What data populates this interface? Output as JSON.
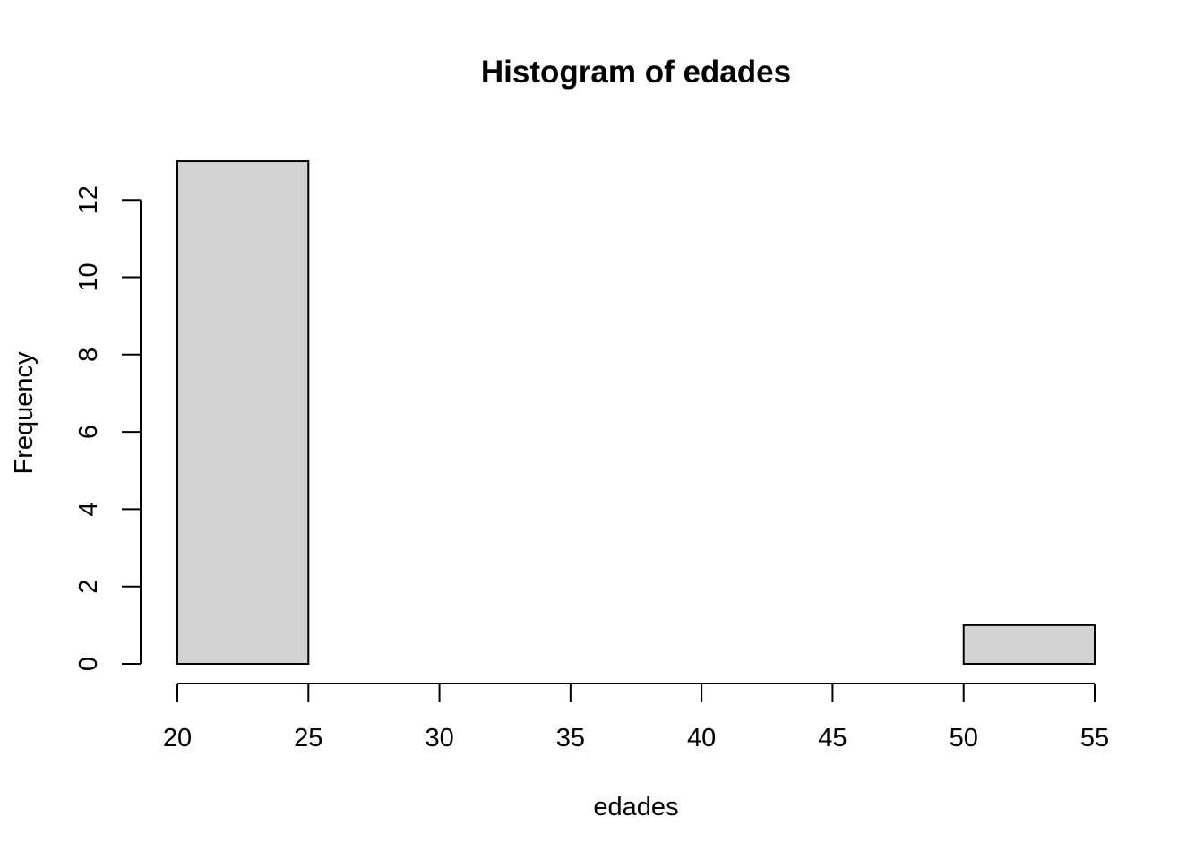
{
  "chart_data": {
    "type": "bar",
    "title": "Histogram of edades",
    "xlabel": "edades",
    "ylabel": "Frequency",
    "bins": [
      {
        "start": 20,
        "end": 25,
        "count": 13
      },
      {
        "start": 25,
        "end": 30,
        "count": 0
      },
      {
        "start": 30,
        "end": 35,
        "count": 0
      },
      {
        "start": 35,
        "end": 40,
        "count": 0
      },
      {
        "start": 40,
        "end": 45,
        "count": 0
      },
      {
        "start": 45,
        "end": 50,
        "count": 0
      },
      {
        "start": 50,
        "end": 55,
        "count": 1
      }
    ],
    "xticks": [
      20,
      25,
      30,
      35,
      40,
      45,
      50,
      55
    ],
    "yticks": [
      0,
      2,
      4,
      6,
      8,
      10,
      12
    ],
    "xlim": [
      20,
      55
    ],
    "ylim": [
      0,
      13
    ],
    "bar_fill": "#d3d3d3",
    "grid": false
  }
}
